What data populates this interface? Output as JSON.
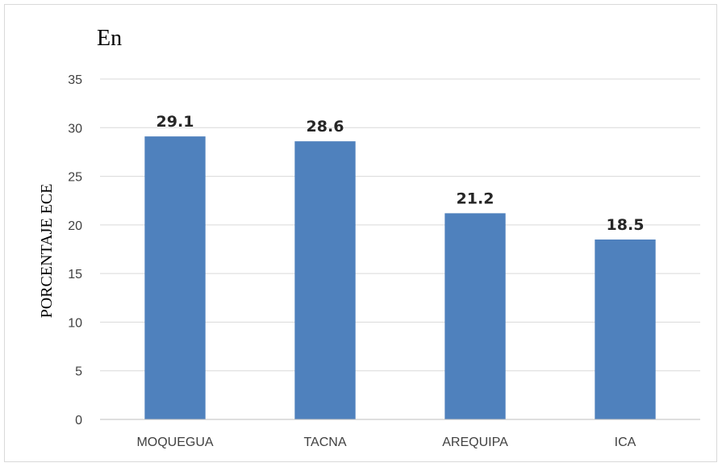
{
  "chart_data": {
    "type": "bar",
    "title": "En",
    "ylabel": "PORCENTAJE ECE",
    "xlabel": "",
    "categories": [
      "MOQUEGUA",
      "TACNA",
      "AREQUIPA",
      "ICA"
    ],
    "values": [
      29.1,
      28.6,
      21.2,
      18.5
    ],
    "ylim": [
      0,
      35
    ],
    "yticks": [
      0,
      5,
      10,
      15,
      20,
      25,
      30,
      35
    ],
    "grid": true,
    "legend": "none",
    "colors": {
      "bar": "#4f81bd",
      "grid": "#d9d9d9",
      "axis": "#bfbfbf"
    }
  }
}
